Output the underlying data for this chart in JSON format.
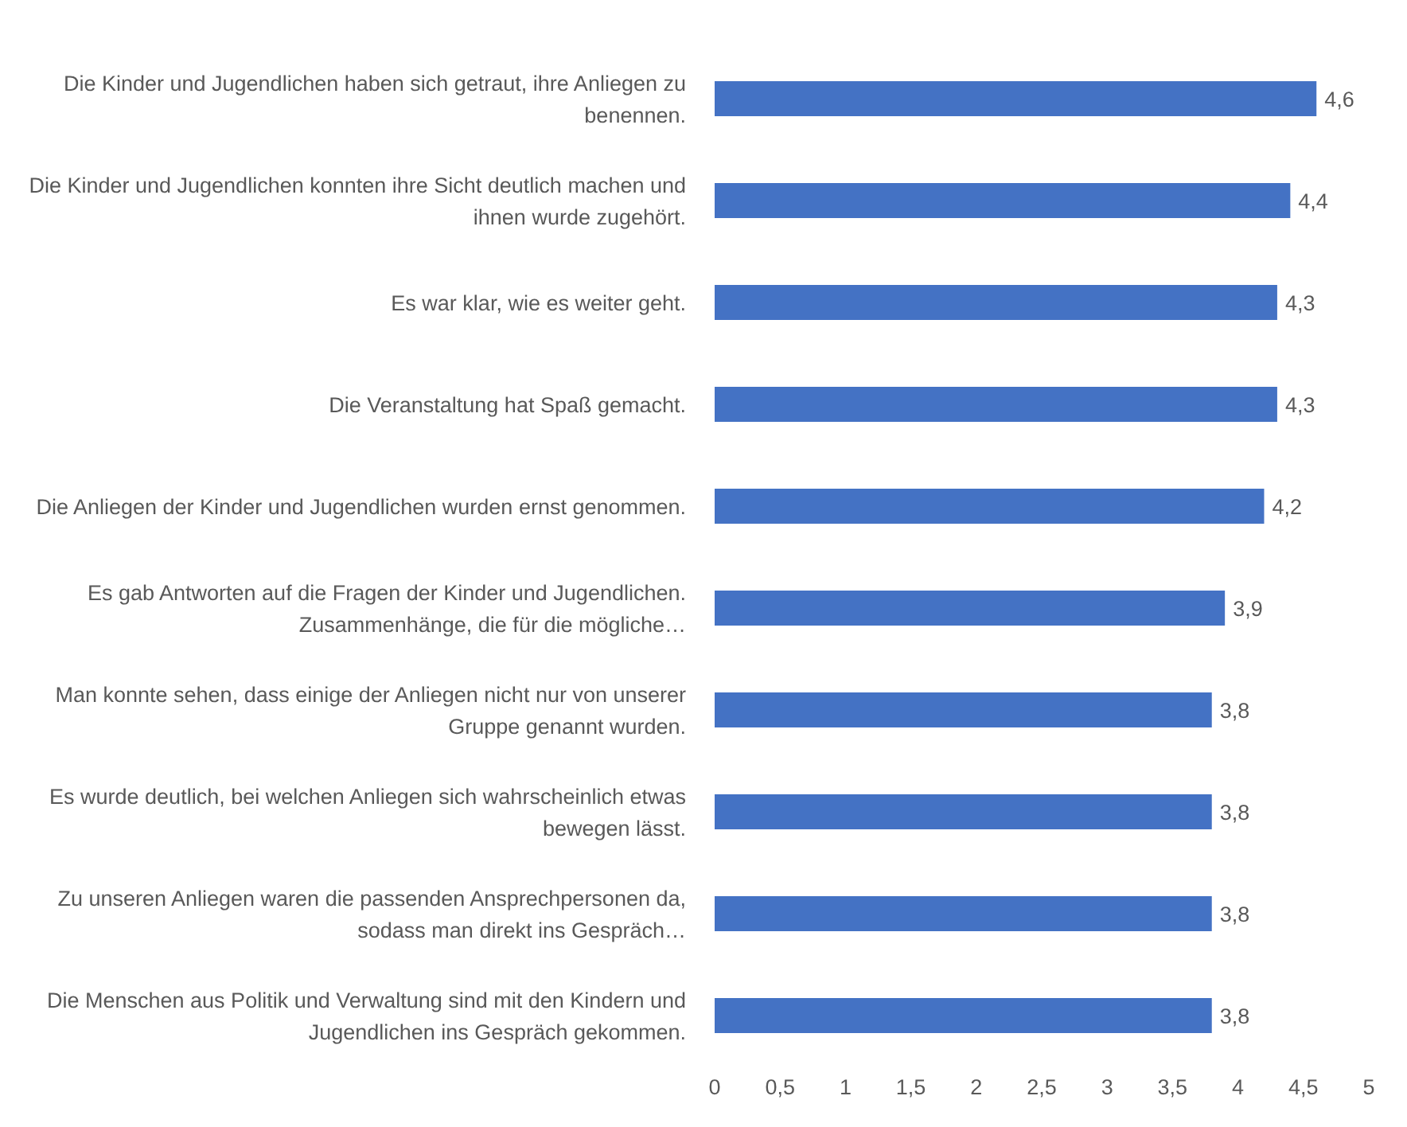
{
  "chart_data": {
    "type": "bar",
    "orientation": "horizontal",
    "categories": [
      "Die Kinder und Jugendlichen haben sich getraut, ihre Anliegen zu benennen.",
      "Die Kinder und Jugendlichen konnten ihre Sicht deutlich machen und ihnen wurde zugehört.",
      "Es war klar, wie es weiter geht.",
      "Die Veranstaltung hat Spaß gemacht.",
      "Die Anliegen der Kinder und Jugendlichen wurden ernst genommen.",
      "Es gab Antworten auf die Fragen der Kinder und Jugendlichen. Zusammenhänge, die für die mögliche…",
      "Man konnte sehen, dass einige der Anliegen nicht nur von unserer Gruppe genannt wurden.",
      "Es wurde deutlich, bei welchen Anliegen sich wahrscheinlich etwas bewegen lässt.",
      "Zu unseren Anliegen waren die passenden Ansprechpersonen da, sodass man direkt ins Gespräch…",
      "Die Menschen aus Politik und Verwaltung sind mit den Kindern und Jugendlichen ins Gespräch gekommen."
    ],
    "values": [
      4.6,
      4.4,
      4.3,
      4.3,
      4.2,
      3.9,
      3.8,
      3.8,
      3.8,
      3.8
    ],
    "value_labels": [
      "4,6",
      "4,4",
      "4,3",
      "4,3",
      "4,2",
      "3,9",
      "3,8",
      "3,8",
      "3,8",
      "3,8"
    ],
    "color": "#4472c4",
    "xlim": [
      0,
      5
    ],
    "xticks": [
      0,
      {
        "value": 0.5,
        "label": "0,5"
      },
      1,
      {
        "value": 1.5,
        "label": "1,5"
      },
      2,
      {
        "value": 2.5,
        "label": "2,5"
      },
      3,
      {
        "value": 3.5,
        "label": "3,5"
      },
      4,
      {
        "value": 4.5,
        "label": "4,5"
      },
      5
    ],
    "grid": false,
    "legend": false
  }
}
